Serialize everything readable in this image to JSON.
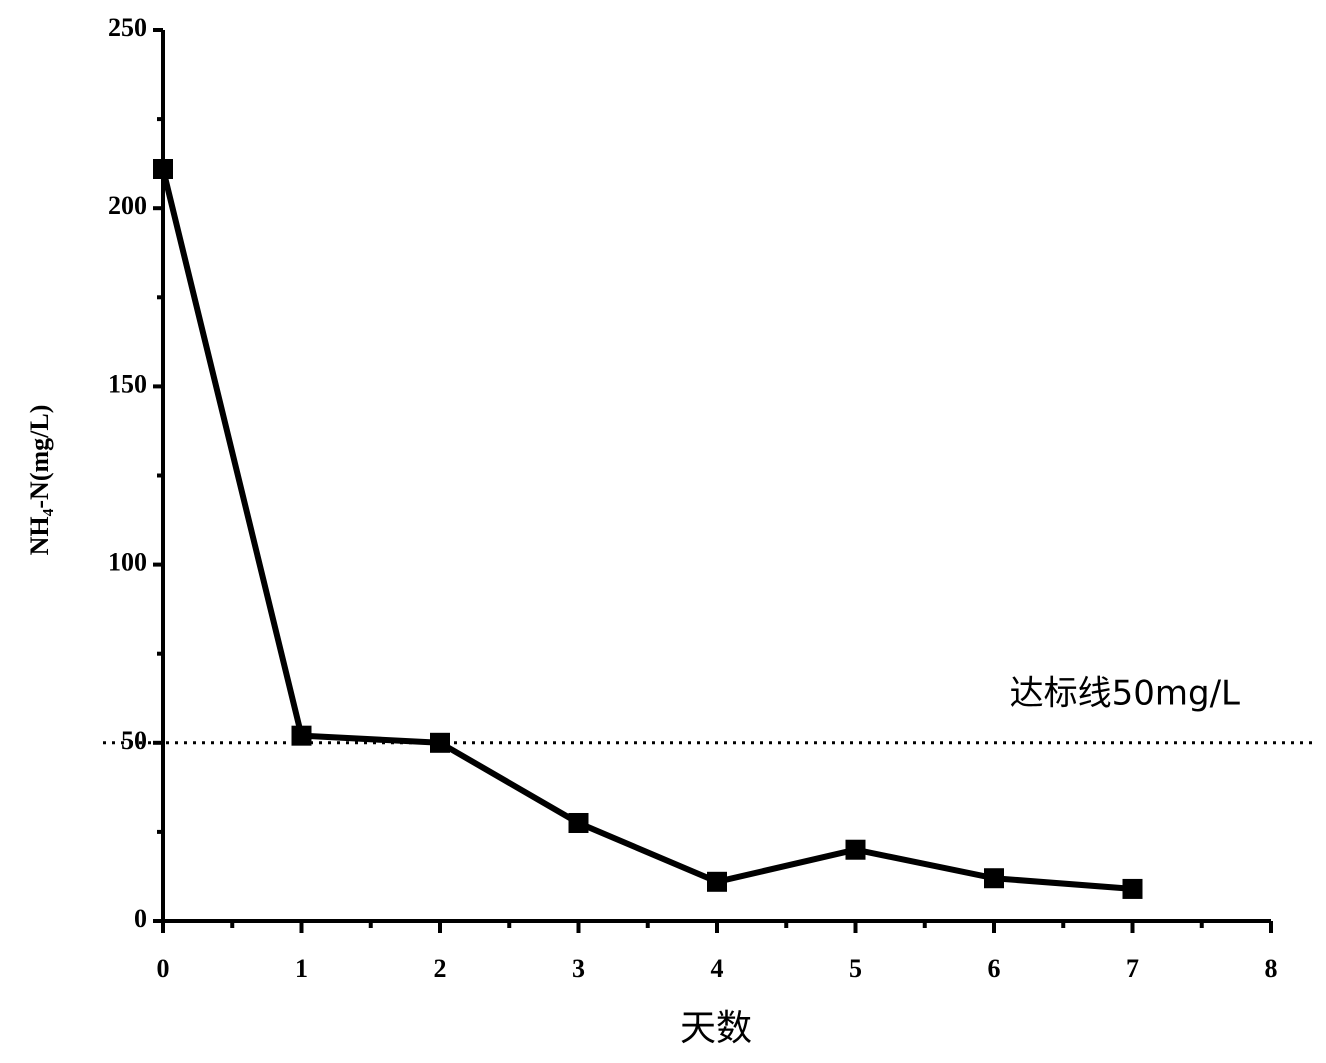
{
  "chart_data": {
    "type": "line",
    "x_label": "天数",
    "y_label": "NH₄-N(mg/L)",
    "x": [
      0,
      1,
      2,
      3,
      4,
      5,
      6,
      7
    ],
    "series": [
      {
        "name": "NH₄-N",
        "color": "#000000",
        "values": [
          211,
          52,
          50,
          27.5,
          11,
          20,
          12,
          9
        ]
      }
    ],
    "xlim": [
      0,
      8
    ],
    "xticks": [
      0,
      1,
      2,
      3,
      4,
      5,
      6,
      7,
      8
    ],
    "minor_xticks": [
      0.5,
      1.5,
      2.5,
      3.5,
      4.5,
      5.5,
      6.5,
      7.5
    ],
    "ylim": [
      0,
      250
    ],
    "yticks": [
      0,
      50,
      100,
      150,
      200,
      250
    ],
    "minor_yticks": [
      25,
      75,
      125,
      175,
      225
    ],
    "hline": {
      "value": 50,
      "label": "达标线50mg/L"
    },
    "grid": false
  }
}
